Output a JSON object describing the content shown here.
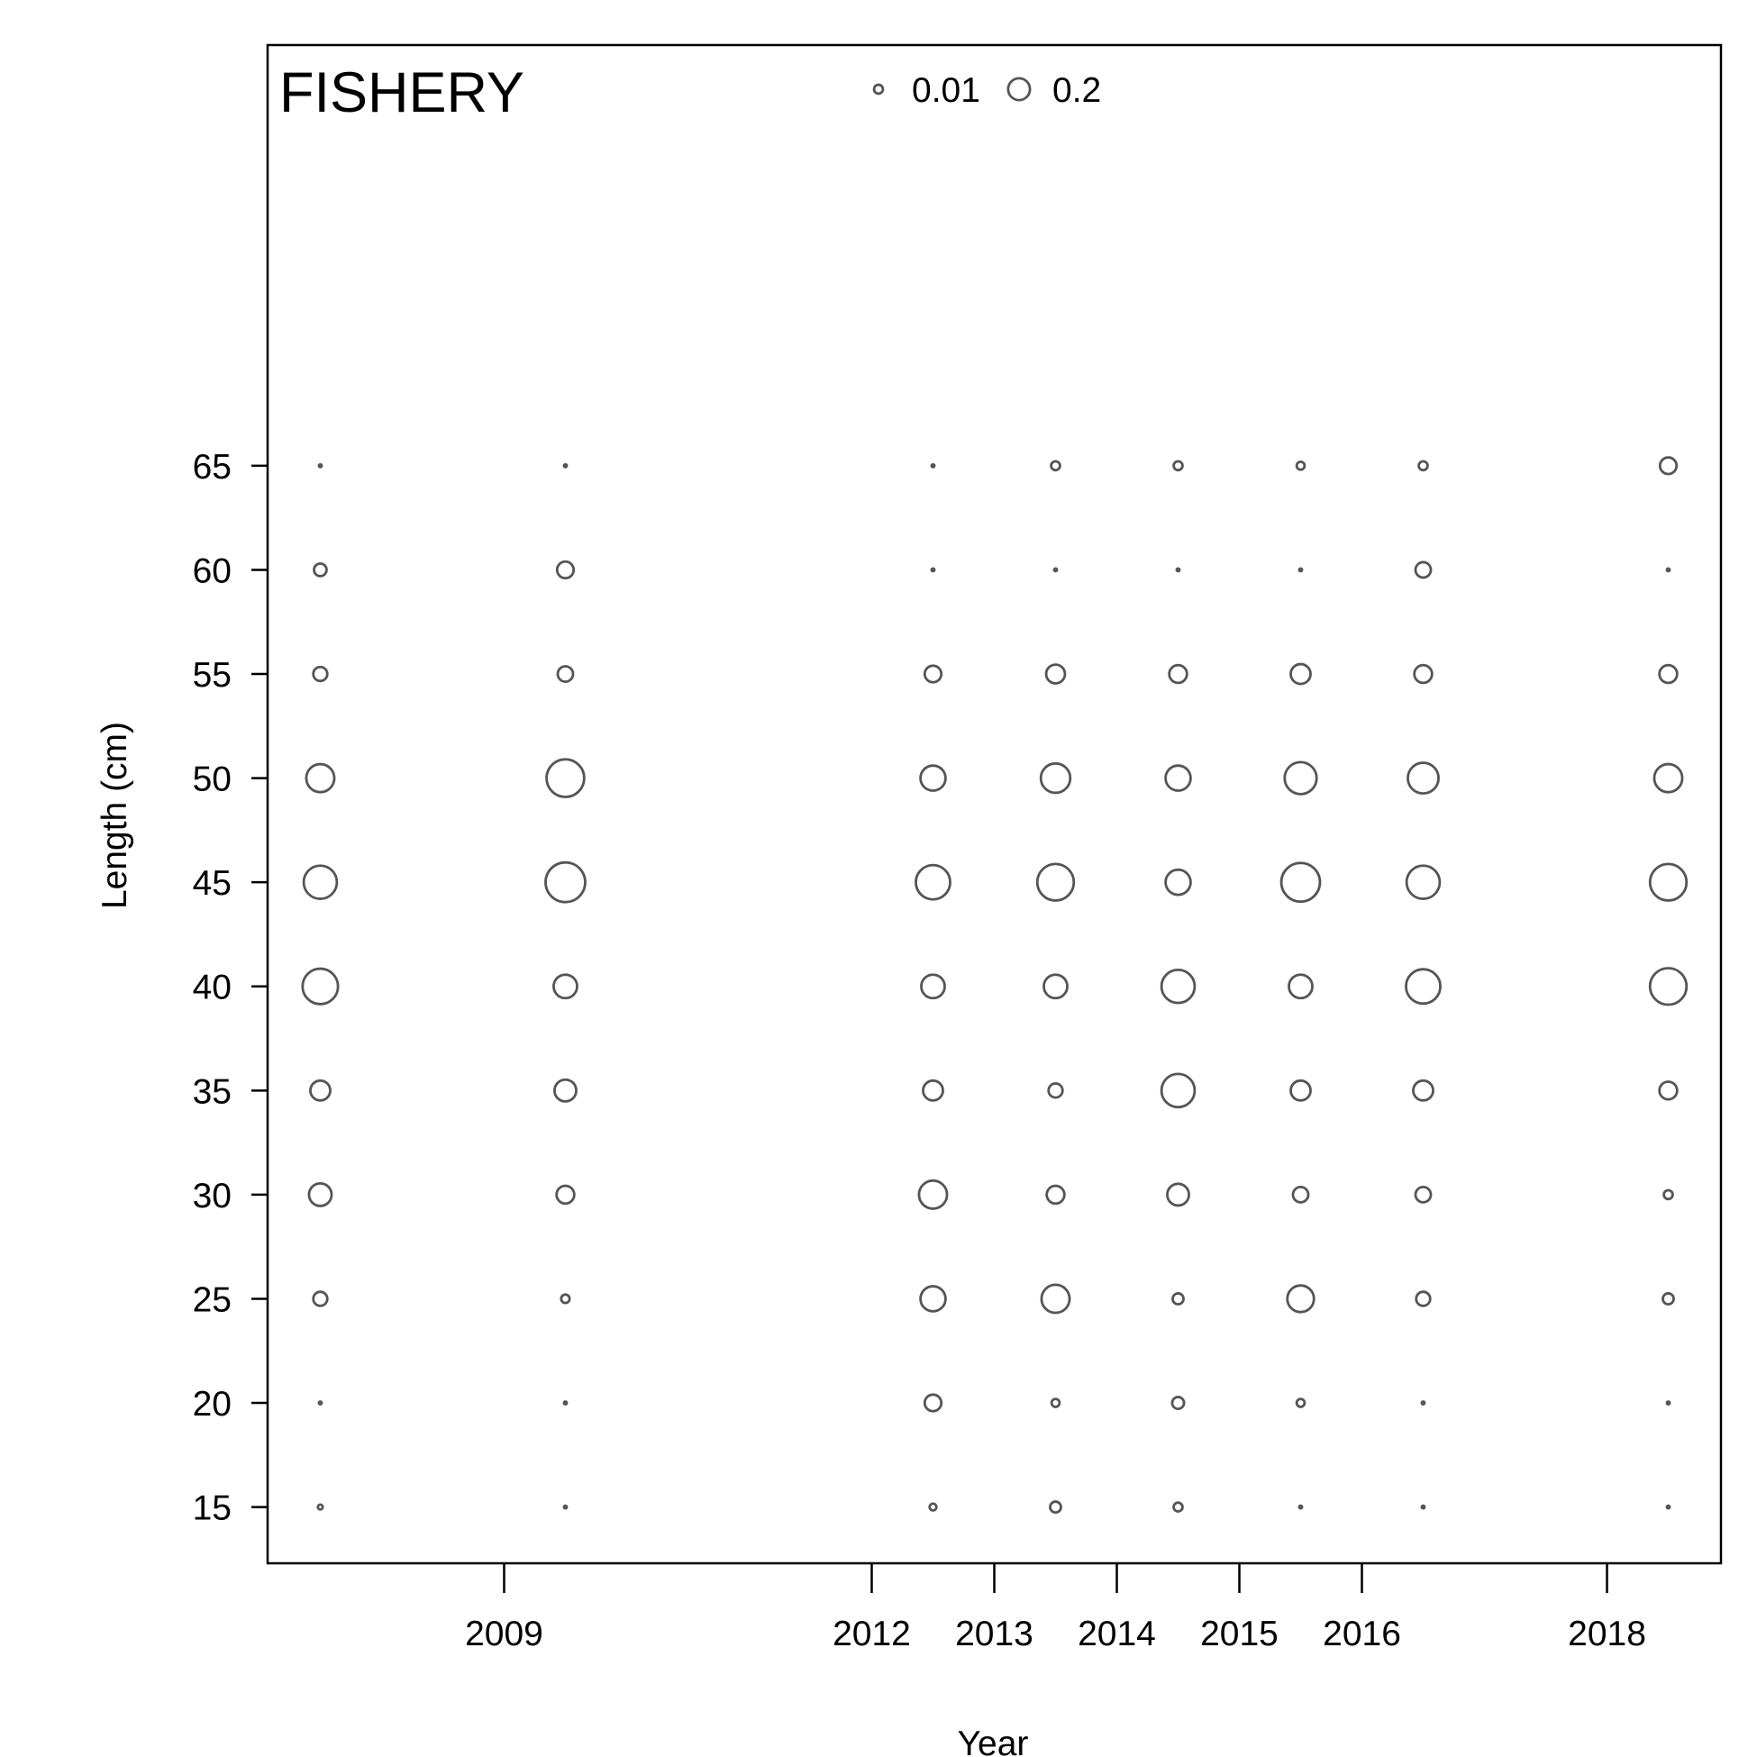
{
  "chart_data": {
    "type": "scatter",
    "subtype": "bubble",
    "panel_label": "FISHERY",
    "xlabel": "Year",
    "ylabel": "Length (cm)",
    "x_ticks": [
      2009,
      2012,
      2013,
      2014,
      2015,
      2016,
      2018
    ],
    "y_ticks": [
      15,
      20,
      25,
      30,
      35,
      40,
      45,
      50,
      55,
      60,
      65
    ],
    "xlim": [
      2007.07,
      2018.93
    ],
    "ylim": [
      12.3,
      85.2
    ],
    "grid": false,
    "legend": {
      "placement": "top-center",
      "entries": [
        {
          "label": "0.01",
          "value": 0.01
        },
        {
          "label": "0.2",
          "value": 0.2
        }
      ]
    },
    "series": [
      {
        "x": 2007.5,
        "lengths": [
          15,
          20,
          25,
          30,
          35,
          40,
          45,
          50,
          55,
          60,
          65
        ],
        "values": [
          0.003,
          0.001,
          0.025,
          0.065,
          0.05,
          0.16,
          0.14,
          0.1,
          0.025,
          0.02,
          0.001
        ]
      },
      {
        "x": 2009.5,
        "lengths": [
          15,
          20,
          25,
          30,
          35,
          40,
          45,
          50,
          55,
          60,
          65
        ],
        "values": [
          0.001,
          0.001,
          0.009,
          0.04,
          0.06,
          0.07,
          0.2,
          0.18,
          0.03,
          0.035,
          0.001
        ]
      },
      {
        "x": 2012.5,
        "lengths": [
          15,
          20,
          25,
          30,
          35,
          40,
          45,
          50,
          55,
          60,
          65
        ],
        "values": [
          0.006,
          0.035,
          0.08,
          0.1,
          0.05,
          0.07,
          0.15,
          0.08,
          0.035,
          0.001,
          0.001
        ]
      },
      {
        "x": 2013.5,
        "lengths": [
          15,
          20,
          25,
          30,
          35,
          40,
          45,
          50,
          55,
          60,
          65
        ],
        "values": [
          0.015,
          0.008,
          0.1,
          0.04,
          0.025,
          0.07,
          0.17,
          0.11,
          0.045,
          0.001,
          0.01
        ]
      },
      {
        "x": 2014.5,
        "lengths": [
          15,
          20,
          25,
          30,
          35,
          40,
          45,
          50,
          55,
          60,
          65
        ],
        "values": [
          0.01,
          0.018,
          0.015,
          0.06,
          0.14,
          0.14,
          0.08,
          0.08,
          0.04,
          0.001,
          0.01
        ]
      },
      {
        "x": 2015.5,
        "lengths": [
          15,
          20,
          25,
          30,
          35,
          40,
          45,
          50,
          55,
          60,
          65
        ],
        "values": [
          0.001,
          0.008,
          0.09,
          0.03,
          0.05,
          0.07,
          0.19,
          0.13,
          0.05,
          0.001,
          0.008
        ]
      },
      {
        "x": 2016.5,
        "lengths": [
          15,
          20,
          25,
          30,
          35,
          40,
          45,
          50,
          55,
          60,
          65
        ],
        "values": [
          0.001,
          0.001,
          0.025,
          0.03,
          0.05,
          0.15,
          0.14,
          0.12,
          0.04,
          0.03,
          0.01
        ]
      },
      {
        "x": 2018.5,
        "lengths": [
          15,
          20,
          25,
          30,
          35,
          40,
          45,
          50,
          55,
          60,
          65
        ],
        "values": [
          0.001,
          0.001,
          0.015,
          0.01,
          0.04,
          0.17,
          0.17,
          0.1,
          0.04,
          0.001,
          0.035
        ]
      }
    ]
  }
}
